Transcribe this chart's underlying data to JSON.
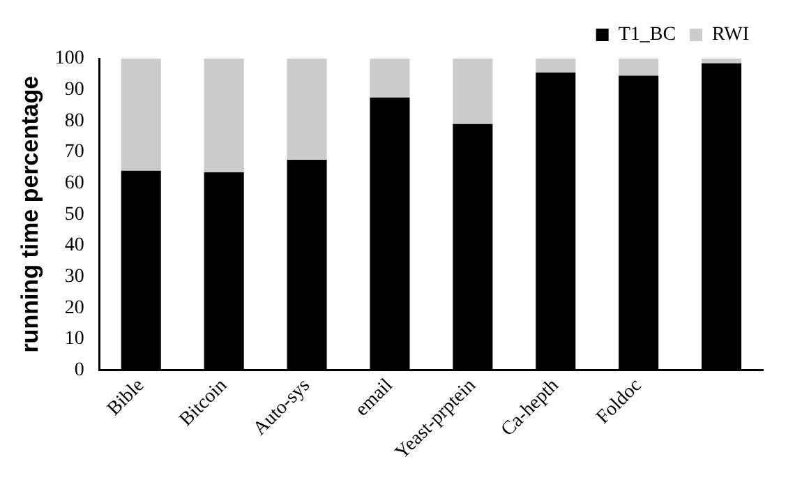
{
  "chart_data": {
    "type": "bar",
    "stacked": true,
    "ylabel": "running time percentage",
    "categories": [
      "Bible",
      "Bitcoin",
      "Auto-sys",
      "email",
      "Yeast-prptein",
      "Ca-hepth",
      "Foldoc",
      null
    ],
    "series": [
      {
        "name": "T1_BC",
        "color": "#000000",
        "values": [
          64,
          63.5,
          67.5,
          87.5,
          79,
          95.5,
          94.5,
          98.5
        ]
      },
      {
        "name": "RWI",
        "color": "#cccccc",
        "values": [
          36,
          36.5,
          32.5,
          12.5,
          21,
          4.5,
          5.5,
          1.5
        ]
      }
    ],
    "ylim": [
      0,
      100
    ],
    "yticks": [
      0,
      10,
      20,
      30,
      40,
      50,
      60,
      70,
      80,
      90,
      100
    ],
    "grid": false,
    "legend": "top right"
  }
}
